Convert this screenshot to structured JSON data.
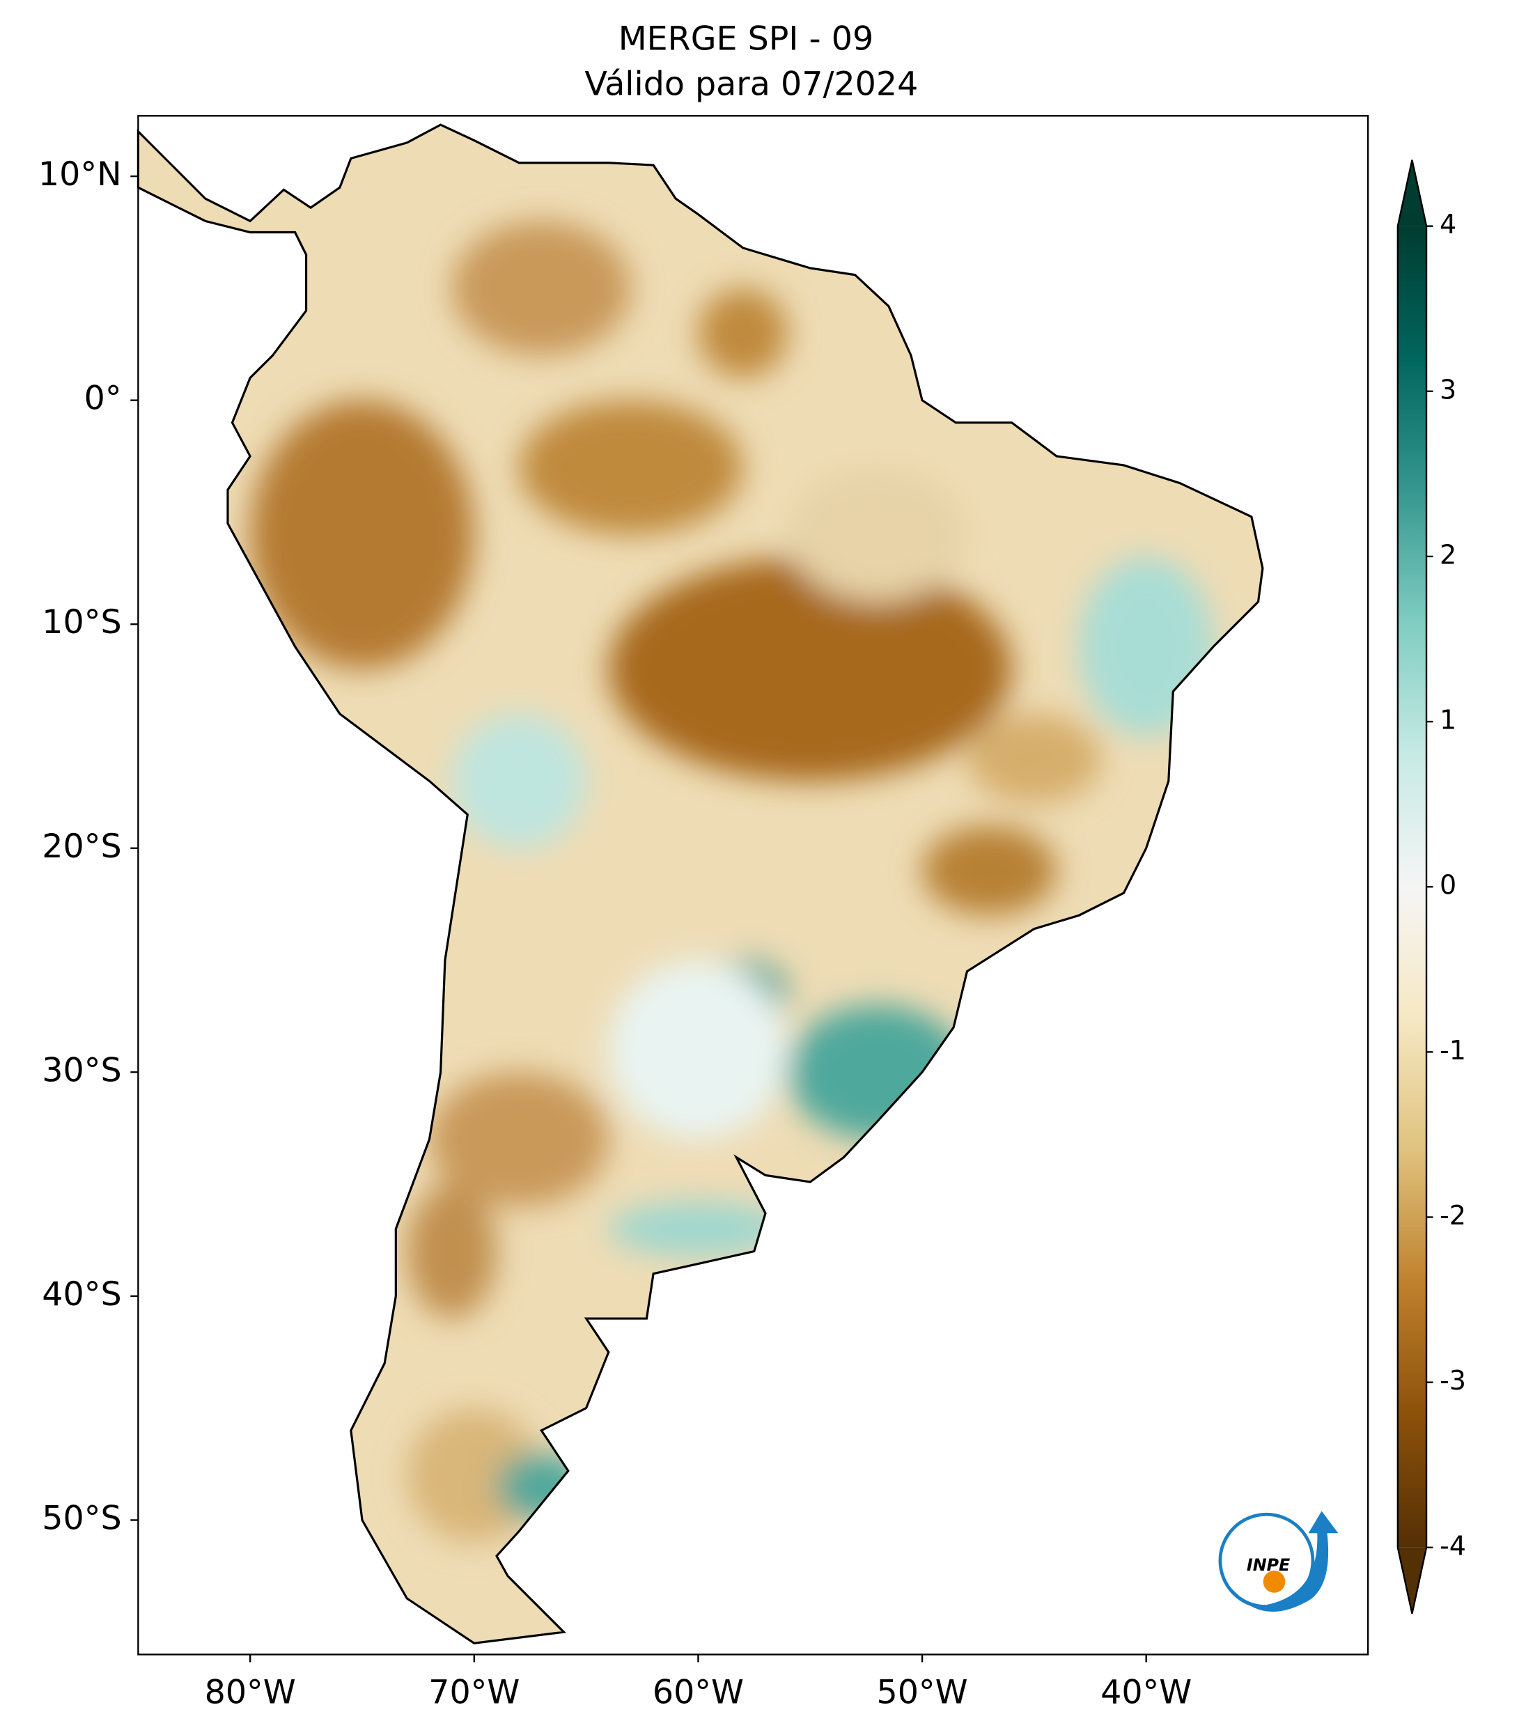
{
  "chart_data": {
    "type": "map",
    "title": [
      "MERGE   SPI - 09",
      "Válido para 07/2024"
    ],
    "xlim": [
      -85,
      -30.1
    ],
    "ylim": [
      -56,
      12.7
    ],
    "xticks": [
      {
        "value": -80,
        "label": "80°W"
      },
      {
        "value": -70,
        "label": "70°W"
      },
      {
        "value": -60,
        "label": "60°W"
      },
      {
        "value": -50,
        "label": "50°W"
      },
      {
        "value": -40,
        "label": "40°W"
      }
    ],
    "yticks": [
      {
        "value": 10,
        "label": "10°N"
      },
      {
        "value": 0,
        "label": "0°"
      },
      {
        "value": -10,
        "label": "10°S"
      },
      {
        "value": -20,
        "label": "20°S"
      },
      {
        "value": -30,
        "label": "30°S"
      },
      {
        "value": -40,
        "label": "40°S"
      },
      {
        "value": -50,
        "label": "50°S"
      }
    ],
    "colorbar": {
      "lim": [
        -4,
        4
      ],
      "ticks": [
        -4,
        -3,
        -2,
        -1,
        0,
        1,
        2,
        3,
        4
      ],
      "colormap": [
        "#543005",
        "#8c510a",
        "#bf812d",
        "#dfc27d",
        "#f6e8c3",
        "#f5f5f5",
        "#c7eae5",
        "#80cdc1",
        "#35978f",
        "#01665e",
        "#003c30"
      ]
    },
    "logo": "INPE"
  }
}
